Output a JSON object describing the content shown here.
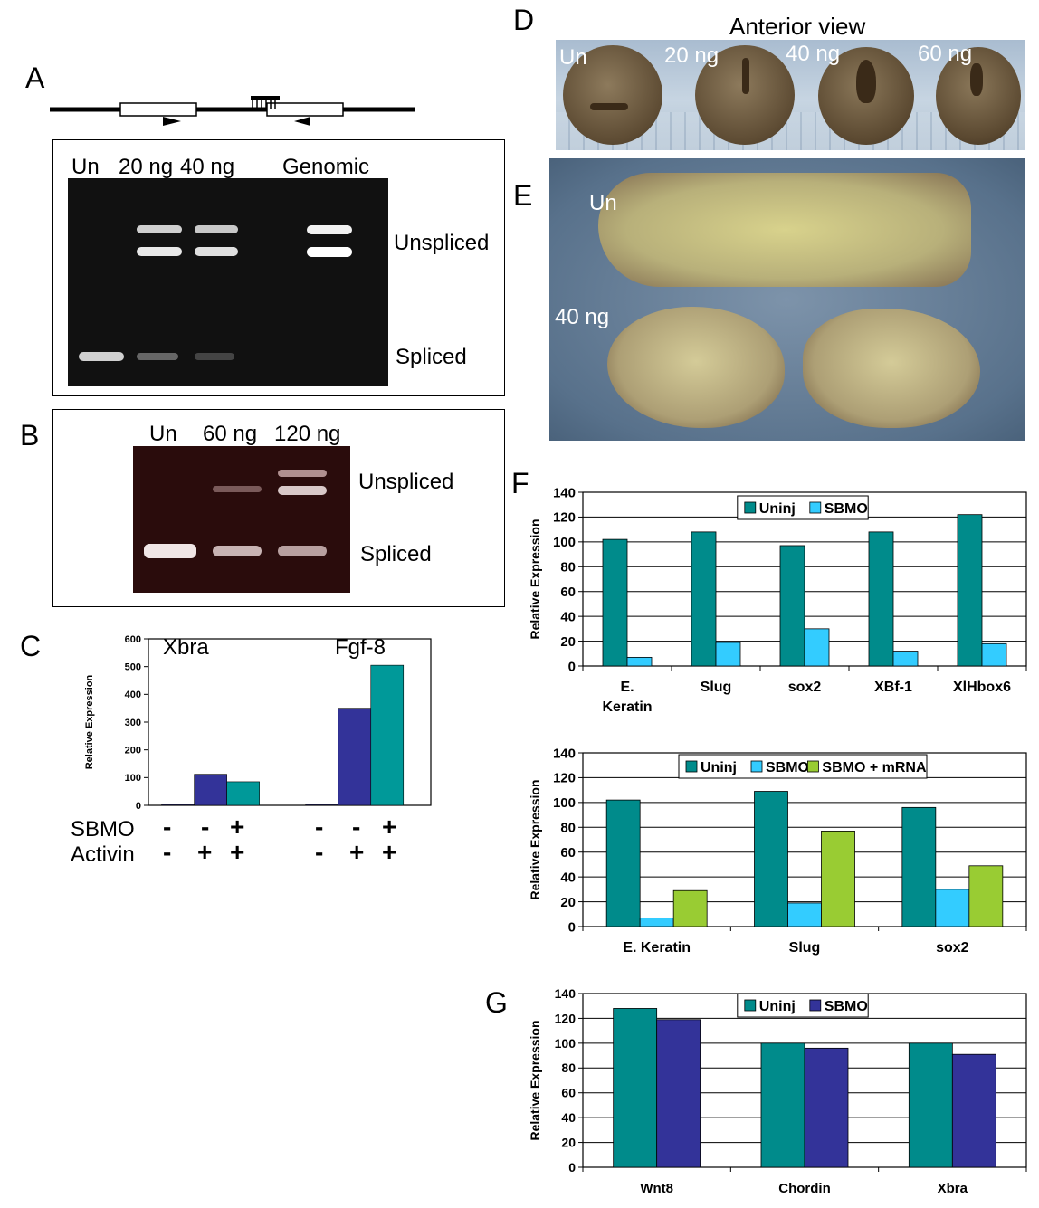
{
  "panels": {
    "A": {
      "letter": "A",
      "lanes": [
        "Un",
        "20 ng",
        "40 ng",
        "Genomic"
      ],
      "bands": [
        "Unspliced",
        "Spliced"
      ]
    },
    "B": {
      "letter": "B",
      "lanes": [
        "Un",
        "60 ng",
        "120 ng"
      ],
      "bands": [
        "Unspliced",
        "Spliced"
      ]
    },
    "C": {
      "letter": "C",
      "groups": [
        "Xbra",
        "Fgf-8"
      ],
      "row_labels": [
        "SBMO",
        "Activin"
      ],
      "sbmo_signs": [
        "-",
        "-",
        "+",
        "-",
        "-",
        "+"
      ],
      "activin_signs": [
        "-",
        "+",
        "+",
        "-",
        "+",
        "+"
      ]
    },
    "D": {
      "letter": "D",
      "title": "Anterior view",
      "labels": [
        "Un",
        "20 ng",
        "40 ng",
        "60 ng"
      ]
    },
    "E": {
      "letter": "E",
      "labels": [
        "Un",
        "40 ng"
      ]
    },
    "F": {
      "letter": "F"
    },
    "G": {
      "letter": "G"
    }
  },
  "chart_data": [
    {
      "id": "C",
      "type": "bar",
      "ylabel": "Relative Expression",
      "ylim": [
        0,
        600
      ],
      "yticks": [
        0,
        100,
        200,
        300,
        400,
        500,
        600
      ],
      "categories": [
        "Xbra",
        "Fgf-8"
      ],
      "bars_per_group": [
        [
          {
            "value": 3,
            "color": "#333399"
          },
          {
            "value": 112,
            "color": "#333399"
          },
          {
            "value": 85,
            "color": "#009999"
          }
        ],
        [
          {
            "value": 3,
            "color": "#333399"
          },
          {
            "value": 350,
            "color": "#333399"
          },
          {
            "value": 505,
            "color": "#009999"
          }
        ]
      ]
    },
    {
      "id": "F1",
      "type": "bar",
      "ylabel": "Relative Expression",
      "ylim": [
        0,
        140
      ],
      "yticks": [
        0,
        20,
        40,
        60,
        80,
        100,
        120,
        140
      ],
      "categories": [
        "E. Keratin",
        "Slug",
        "sox2",
        "XBf-1",
        "XlHbox6"
      ],
      "category_lines": [
        [
          "E.",
          "Keratin"
        ],
        [
          "Slug"
        ],
        [
          "sox2"
        ],
        [
          "XBf-1"
        ],
        [
          "XlHbox6"
        ]
      ],
      "series": [
        {
          "name": "Uninj",
          "color": "#008b8b",
          "values": [
            102,
            108,
            97,
            108,
            122
          ]
        },
        {
          "name": "SBMO",
          "color": "#33ccff",
          "values": [
            7,
            19,
            30,
            12,
            18
          ]
        }
      ],
      "legend": "top-center",
      "grid": true
    },
    {
      "id": "F2",
      "type": "bar",
      "ylabel": "Relative Expression",
      "ylim": [
        0,
        140
      ],
      "yticks": [
        0,
        20,
        40,
        60,
        80,
        100,
        120,
        140
      ],
      "categories": [
        "E. Keratin",
        "Slug",
        "sox2"
      ],
      "category_lines": [
        [
          "E. Keratin"
        ],
        [
          "Slug"
        ],
        [
          "sox2"
        ]
      ],
      "series": [
        {
          "name": "Uninj",
          "color": "#008b8b",
          "values": [
            102,
            109,
            96
          ]
        },
        {
          "name": "SBMO",
          "color": "#33ccff",
          "values": [
            7,
            19,
            30
          ]
        },
        {
          "name": "SBMO + mRNA",
          "color": "#99cc33",
          "values": [
            29,
            77,
            49
          ]
        }
      ],
      "legend": "top-center",
      "grid": true
    },
    {
      "id": "G",
      "type": "bar",
      "ylabel": "Relative Expression",
      "ylim": [
        0,
        140
      ],
      "yticks": [
        0,
        20,
        40,
        60,
        80,
        100,
        120,
        140
      ],
      "categories": [
        "Wnt8",
        "Chordin",
        "Xbra"
      ],
      "category_lines": [
        [
          "Wnt8"
        ],
        [
          "Chordin"
        ],
        [
          "Xbra"
        ]
      ],
      "series": [
        {
          "name": "Uninj",
          "color": "#008b8b",
          "values": [
            128,
            100,
            100
          ]
        },
        {
          "name": "SBMO",
          "color": "#333399",
          "values": [
            119,
            96,
            91
          ]
        }
      ],
      "legend": "top-center",
      "grid": true
    }
  ]
}
